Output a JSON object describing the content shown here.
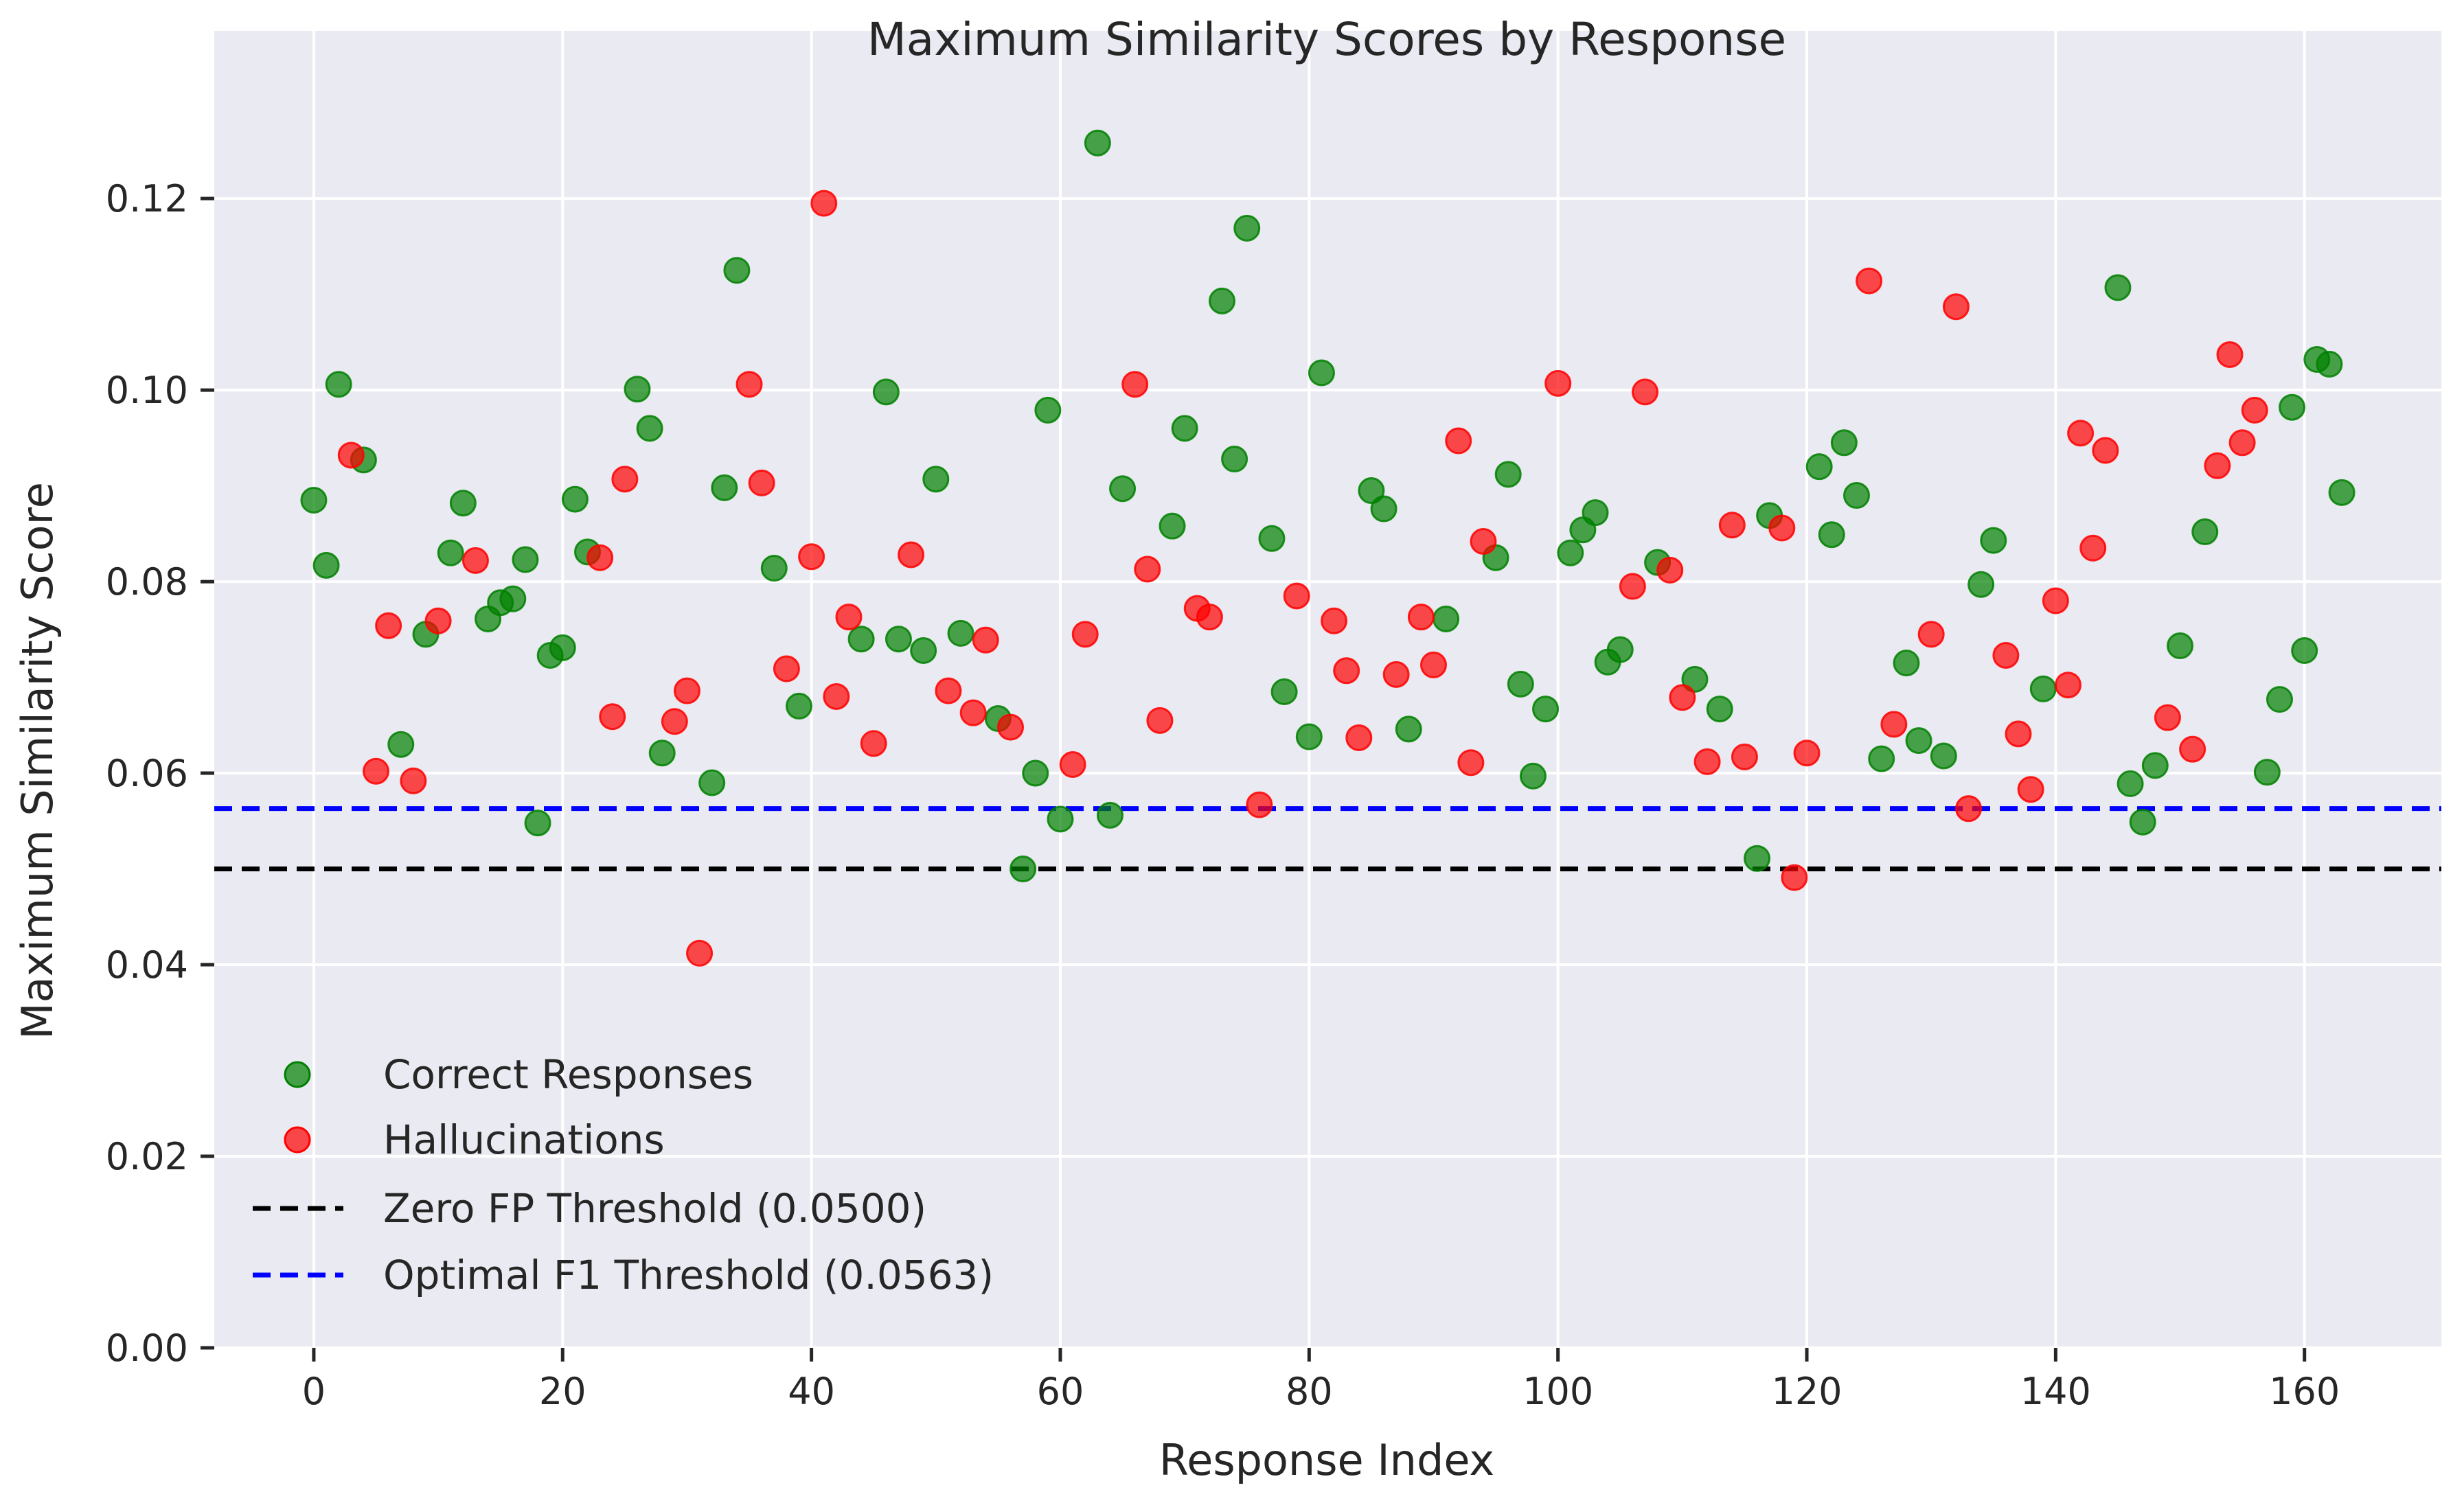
{
  "chart_data": {
    "type": "scatter",
    "title": "Maximum Similarity Scores by Response",
    "xlabel": "Response Index",
    "ylabel": "Maximum Similarity Score",
    "xlim": [
      -8,
      171
    ],
    "ylim": [
      0,
      0.1375
    ],
    "xticks": [
      0,
      20,
      40,
      60,
      80,
      100,
      120,
      140,
      160
    ],
    "yticks": [
      0.0,
      0.02,
      0.04,
      0.06,
      0.08,
      0.1,
      0.12
    ],
    "grid": true,
    "legend_position": "lower-left",
    "series": [
      {
        "name": "Correct Responses",
        "color": "#008000",
        "points": [
          [
            0,
            0.0885
          ],
          [
            1,
            0.0817
          ],
          [
            2,
            0.1006
          ],
          [
            4,
            0.0927
          ],
          [
            7,
            0.063
          ],
          [
            9,
            0.0745
          ],
          [
            11,
            0.083
          ],
          [
            12,
            0.0882
          ],
          [
            14,
            0.0761
          ],
          [
            15,
            0.0778
          ],
          [
            16,
            0.0782
          ],
          [
            17,
            0.0823
          ],
          [
            18,
            0.0548
          ],
          [
            19,
            0.0723
          ],
          [
            20,
            0.0731
          ],
          [
            21,
            0.0886
          ],
          [
            22,
            0.0831
          ],
          [
            26,
            0.1001
          ],
          [
            27,
            0.096
          ],
          [
            28,
            0.0621
          ],
          [
            32,
            0.059
          ],
          [
            33,
            0.0898
          ],
          [
            34,
            0.1125
          ],
          [
            37,
            0.0814
          ],
          [
            39,
            0.067
          ],
          [
            44,
            0.074
          ],
          [
            46,
            0.0998
          ],
          [
            47,
            0.074
          ],
          [
            49,
            0.0728
          ],
          [
            50,
            0.0907
          ],
          [
            52,
            0.0746
          ],
          [
            55,
            0.0657
          ],
          [
            57,
            0.05
          ],
          [
            58,
            0.06
          ],
          [
            59,
            0.0979
          ],
          [
            60,
            0.0552
          ],
          [
            63,
            0.1258
          ],
          [
            64,
            0.0556
          ],
          [
            65,
            0.0897
          ],
          [
            69,
            0.0858
          ],
          [
            70,
            0.096
          ],
          [
            73,
            0.1093
          ],
          [
            74,
            0.0928
          ],
          [
            75,
            0.1169
          ],
          [
            77,
            0.0845
          ],
          [
            78,
            0.0685
          ],
          [
            80,
            0.0638
          ],
          [
            81,
            0.1018
          ],
          [
            85,
            0.0895
          ],
          [
            86,
            0.0876
          ],
          [
            88,
            0.0646
          ],
          [
            91,
            0.0761
          ],
          [
            95,
            0.0825
          ],
          [
            96,
            0.0912
          ],
          [
            97,
            0.0693
          ],
          [
            98,
            0.0597
          ],
          [
            99,
            0.0667
          ],
          [
            101,
            0.083
          ],
          [
            102,
            0.0854
          ],
          [
            103,
            0.0872
          ],
          [
            104,
            0.0716
          ],
          [
            105,
            0.0729
          ],
          [
            108,
            0.082
          ],
          [
            111,
            0.0698
          ],
          [
            113,
            0.0667
          ],
          [
            116,
            0.0511
          ],
          [
            117,
            0.0869
          ],
          [
            121,
            0.092
          ],
          [
            122,
            0.0849
          ],
          [
            123,
            0.0945
          ],
          [
            124,
            0.089
          ],
          [
            126,
            0.0615
          ],
          [
            128,
            0.0715
          ],
          [
            129,
            0.0634
          ],
          [
            131,
            0.0618
          ],
          [
            134,
            0.0797
          ],
          [
            135,
            0.0843
          ],
          [
            139,
            0.0688
          ],
          [
            145,
            0.1107
          ],
          [
            146,
            0.0589
          ],
          [
            147,
            0.0549
          ],
          [
            148,
            0.0608
          ],
          [
            150,
            0.0733
          ],
          [
            152,
            0.0852
          ],
          [
            157,
            0.0601
          ],
          [
            158,
            0.0677
          ],
          [
            159,
            0.0982
          ],
          [
            160,
            0.0728
          ],
          [
            161,
            0.1032
          ],
          [
            162,
            0.1027
          ],
          [
            163,
            0.0893
          ]
        ]
      },
      {
        "name": "Hallucinations",
        "color": "#ff0000",
        "points": [
          [
            3,
            0.0932
          ],
          [
            5,
            0.0602
          ],
          [
            6,
            0.0754
          ],
          [
            8,
            0.0592
          ],
          [
            10,
            0.0759
          ],
          [
            13,
            0.0822
          ],
          [
            23,
            0.0825
          ],
          [
            24,
            0.0659
          ],
          [
            25,
            0.0907
          ],
          [
            29,
            0.0654
          ],
          [
            30,
            0.0686
          ],
          [
            31,
            0.0412
          ],
          [
            35,
            0.1006
          ],
          [
            36,
            0.0903
          ],
          [
            38,
            0.0709
          ],
          [
            40,
            0.0826
          ],
          [
            41,
            0.1195
          ],
          [
            42,
            0.068
          ],
          [
            43,
            0.0763
          ],
          [
            45,
            0.0631
          ],
          [
            48,
            0.0828
          ],
          [
            51,
            0.0686
          ],
          [
            53,
            0.0663
          ],
          [
            54,
            0.0739
          ],
          [
            56,
            0.0648
          ],
          [
            61,
            0.0609
          ],
          [
            62,
            0.0745
          ],
          [
            66,
            0.1006
          ],
          [
            67,
            0.0813
          ],
          [
            68,
            0.0655
          ],
          [
            71,
            0.0772
          ],
          [
            72,
            0.0763
          ],
          [
            76,
            0.0567
          ],
          [
            79,
            0.0785
          ],
          [
            82,
            0.0759
          ],
          [
            83,
            0.0707
          ],
          [
            84,
            0.0637
          ],
          [
            87,
            0.0703
          ],
          [
            89,
            0.0763
          ],
          [
            90,
            0.0713
          ],
          [
            92,
            0.0947
          ],
          [
            93,
            0.0611
          ],
          [
            94,
            0.0842
          ],
          [
            100,
            0.1007
          ],
          [
            106,
            0.0795
          ],
          [
            107,
            0.0998
          ],
          [
            109,
            0.0812
          ],
          [
            110,
            0.0679
          ],
          [
            112,
            0.0612
          ],
          [
            114,
            0.0859
          ],
          [
            115,
            0.0617
          ],
          [
            118,
            0.0856
          ],
          [
            119,
            0.0491
          ],
          [
            120,
            0.0621
          ],
          [
            125,
            0.1114
          ],
          [
            127,
            0.0651
          ],
          [
            130,
            0.0745
          ],
          [
            132,
            0.1087
          ],
          [
            133,
            0.0563
          ],
          [
            136,
            0.0723
          ],
          [
            137,
            0.0641
          ],
          [
            138,
            0.0583
          ],
          [
            140,
            0.078
          ],
          [
            141,
            0.0692
          ],
          [
            142,
            0.0955
          ],
          [
            143,
            0.0835
          ],
          [
            144,
            0.0937
          ],
          [
            149,
            0.0658
          ],
          [
            151,
            0.0625
          ],
          [
            153,
            0.0921
          ],
          [
            154,
            0.1037
          ],
          [
            155,
            0.0945
          ],
          [
            156,
            0.0979
          ]
        ]
      }
    ],
    "thresholds": [
      {
        "name": "Zero FP Threshold (0.0500)",
        "value": 0.05,
        "color": "#000000"
      },
      {
        "name": "Optimal F1 Threshold (0.0563)",
        "value": 0.0563,
        "color": "#0000ff"
      }
    ]
  }
}
